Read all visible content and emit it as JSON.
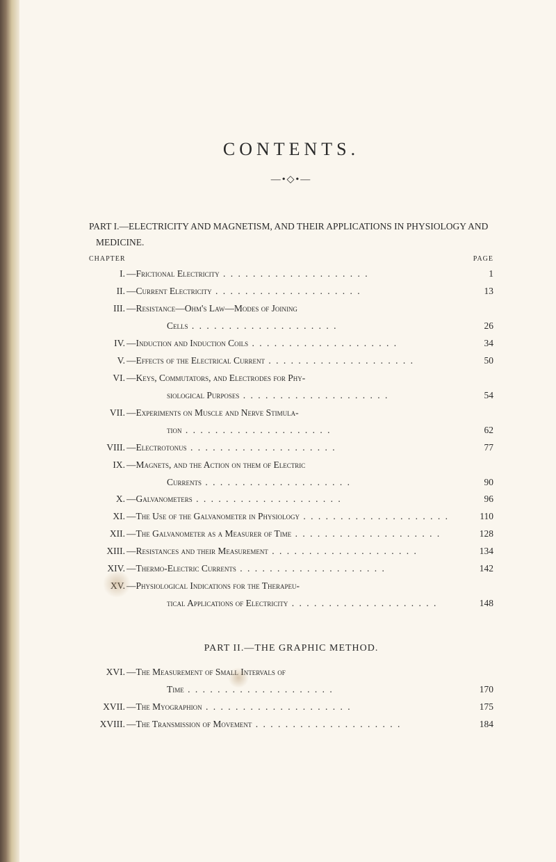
{
  "title": "CONTENTS.",
  "ornament": "—•◇•—",
  "part1_heading": "PART I.—ELECTRICITY AND MAGNETISM, AND THEIR APPLICATIONS IN PHYSIOLOGY AND MEDICINE.",
  "col_left": "CHAPTER",
  "col_right": "PAGE",
  "part1_entries": [
    {
      "roman": "I.",
      "text": "—Frictional Electricity",
      "page": "1"
    },
    {
      "roman": "II.",
      "text": "—Current Electricity",
      "page": "13"
    },
    {
      "roman": "III.",
      "text": "—Resistance—Ohm's Law—Modes of Joining",
      "cont": "Cells",
      "page": "26"
    },
    {
      "roman": "IV.",
      "text": "—Induction and Induction Coils",
      "page": "34"
    },
    {
      "roman": "V.",
      "text": "—Effects of the Electrical Current",
      "page": "50"
    },
    {
      "roman": "VI.",
      "text": "—Keys, Commutators, and Electrodes for Phy-",
      "cont": "siological Purposes",
      "page": "54"
    },
    {
      "roman": "VII.",
      "text": "—Experiments on Muscle and Nerve Stimula-",
      "cont": "tion",
      "page": "62"
    },
    {
      "roman": "VIII.",
      "text": "—Electrotonus",
      "page": "77"
    },
    {
      "roman": "IX.",
      "text": "—Magnets, and the Action on them of Electric",
      "cont": "Currents",
      "page": "90"
    },
    {
      "roman": "X.",
      "text": "—Galvanometers",
      "page": "96"
    },
    {
      "roman": "XI.",
      "text": "—The Use of the Galvanometer in Physiology",
      "page": "110"
    },
    {
      "roman": "XII.",
      "text": "—The Galvanometer as a Measurer of Time",
      "page": "128"
    },
    {
      "roman": "XIII.",
      "text": "—Resistances and their Measurement",
      "page": "134"
    },
    {
      "roman": "XIV.",
      "text": "—Thermo-Electric Currents",
      "page": "142"
    },
    {
      "roman": "XV.",
      "text": "—Physiological Indications for the Therapeu-",
      "cont": "tical Applications of Electricity",
      "page": "148"
    }
  ],
  "part2_heading": "PART II.—THE GRAPHIC METHOD.",
  "part2_entries": [
    {
      "roman": "XVI.",
      "text": "—The Measurement of Small Intervals of",
      "cont": "Time",
      "page": "170"
    },
    {
      "roman": "XVII.",
      "text": "—The Myographion",
      "page": "175"
    },
    {
      "roman": "XVIII.",
      "text": "—The Transmission of Movement",
      "page": "184"
    }
  ]
}
